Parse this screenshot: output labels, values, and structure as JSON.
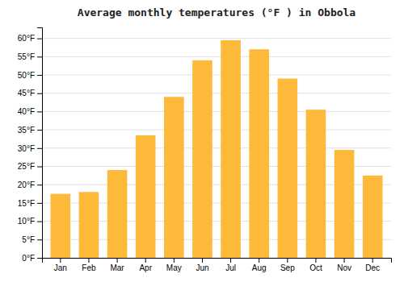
{
  "chart_data": {
    "type": "bar",
    "title": "Average monthly temperatures (°F ) in Obbola",
    "categories": [
      "Jan",
      "Feb",
      "Mar",
      "Apr",
      "May",
      "Jun",
      "Jul",
      "Aug",
      "Sep",
      "Oct",
      "Nov",
      "Dec"
    ],
    "values": [
      17.5,
      18.0,
      24.0,
      33.5,
      44.0,
      54.0,
      59.5,
      57.0,
      49.0,
      40.5,
      29.5,
      22.5
    ],
    "color": "#FDB93A",
    "ylim": [
      0,
      63
    ],
    "yticks": [
      {
        "value": 0,
        "label": "0°F"
      },
      {
        "value": 5,
        "label": "5°F"
      },
      {
        "value": 10,
        "label": "10°F"
      },
      {
        "value": 15,
        "label": "15°F"
      },
      {
        "value": 20,
        "label": "20°F"
      },
      {
        "value": 25,
        "label": "25°F"
      },
      {
        "value": 30,
        "label": "30°F"
      },
      {
        "value": 35,
        "label": "35°F"
      },
      {
        "value": 40,
        "label": "40°F"
      },
      {
        "value": 45,
        "label": "45°F"
      },
      {
        "value": 50,
        "label": "50°F"
      },
      {
        "value": 55,
        "label": "55°F"
      },
      {
        "value": 60,
        "label": "60°F"
      }
    ],
    "grid": true
  }
}
